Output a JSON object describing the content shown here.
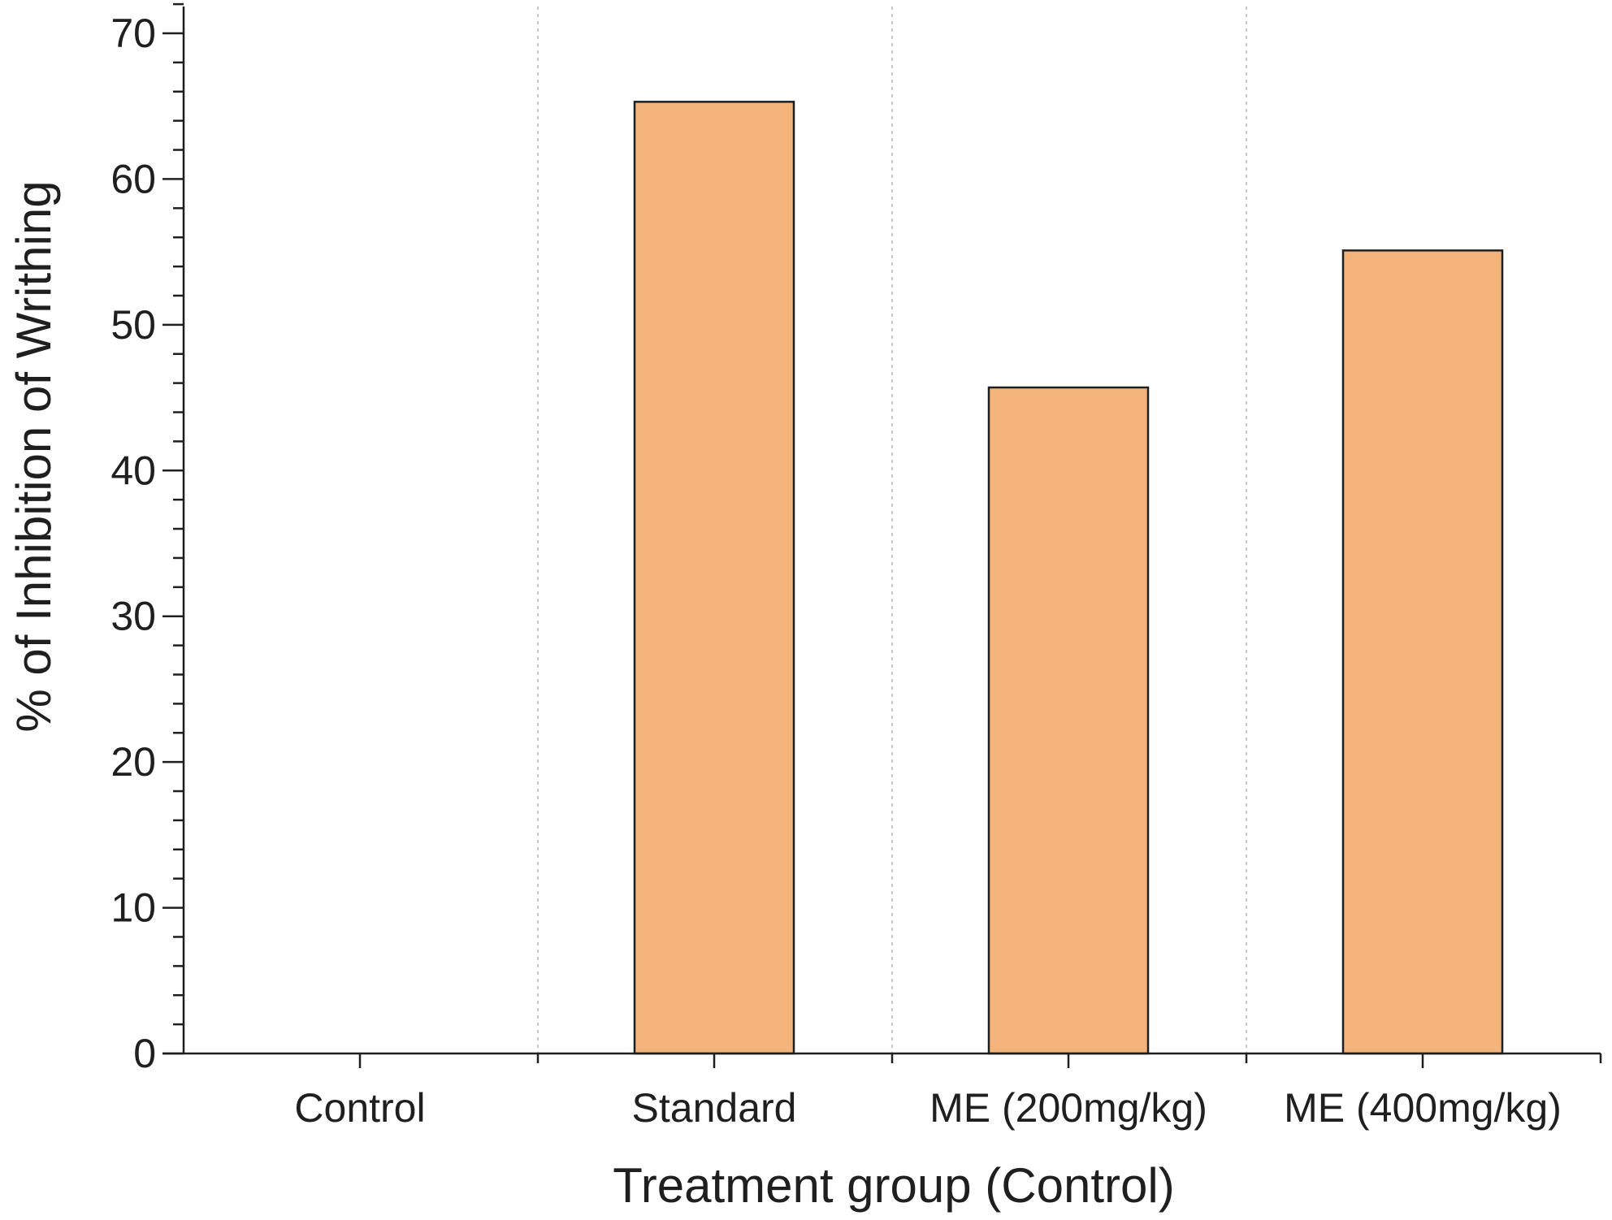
{
  "chart_data": {
    "type": "bar",
    "categories": [
      "Control",
      "Standard",
      "ME (200mg/kg)",
      "ME (400mg/kg)"
    ],
    "values": [
      0,
      65.3,
      45.7,
      55.1
    ],
    "xlabel": "Treatment group (Control)",
    "ylabel": "% of Inhibition of Writhing",
    "ylim": [
      0,
      72
    ],
    "yticks": [
      0,
      10,
      20,
      30,
      40,
      50,
      60,
      70
    ],
    "y_minor_step": 2,
    "grid": "vertical dotted separators between categories",
    "legend": "none",
    "colors": {
      "bar_fill": "#f4b37b",
      "bar_stroke": "#1f1f1f",
      "axis": "#1f1f1f",
      "grid": "#b5b5b5"
    }
  }
}
